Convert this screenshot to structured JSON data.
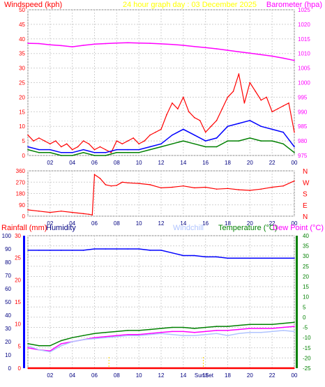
{
  "header": {
    "left_title": "Windspeed (kph)",
    "center_title": "24 hour graph day : 03 December 2025",
    "right_title": "Barometer (hpa)"
  },
  "colors": {
    "windspeed": "#ff0000",
    "gust": "#ff0000",
    "barometer": "#ff00ff",
    "wind_avg": "#0000ff",
    "wind_base": "#008000",
    "direction": "#ff0000",
    "humidity": "#0000ff",
    "temperature": "#008000",
    "dewpoint": "#ff00ff",
    "windchill": "#b0c4ff",
    "rain": "#ff0000",
    "title_left": "#ff0000",
    "title_center": "#ffff00",
    "title_right": "#ff00ff",
    "axis_left": "#ff0000",
    "axis_right": "#ff00ff",
    "rain_axis": "#0000ff",
    "temp_axis": "#008000"
  },
  "chart_data": [
    {
      "type": "line",
      "x_ticks": [
        "02",
        "04",
        "06",
        "08",
        "10",
        "12",
        "14",
        "16",
        "18",
        "20",
        "22",
        "00"
      ],
      "y_left": {
        "ticks": [
          0,
          5,
          10,
          15,
          20,
          25,
          30,
          35,
          40,
          45,
          50
        ],
        "range": [
          0,
          50
        ]
      },
      "y_right": {
        "ticks": [
          975,
          980,
          985,
          990,
          995,
          1000,
          1005,
          1010,
          1015,
          1020,
          1025
        ],
        "range": [
          975,
          1025
        ]
      },
      "grid": true,
      "series": [
        {
          "name": "Windspeed (kph)",
          "kind": "gust",
          "x": [
            0,
            0.5,
            1,
            1.5,
            2,
            2.5,
            3,
            3.5,
            4,
            4.5,
            5,
            5.5,
            6,
            6.5,
            7,
            7.5,
            8,
            8.5,
            9,
            9.5,
            10,
            10.5,
            11,
            11.5,
            12,
            12.5,
            13,
            13.5,
            14,
            14.5,
            15,
            15.5,
            16,
            16.5,
            17,
            17.5,
            18,
            18.5,
            19,
            19.5,
            20,
            20.5,
            21,
            21.5,
            22,
            22.5,
            23,
            23.5,
            24
          ],
          "y": [
            7,
            5,
            6,
            5,
            4,
            5,
            3,
            4,
            2,
            3,
            5,
            4,
            2,
            3,
            2,
            1,
            5,
            4,
            5,
            6,
            4,
            5,
            7,
            8,
            9,
            14,
            18,
            16,
            20,
            15,
            13,
            12,
            8,
            10,
            12,
            16,
            20,
            22,
            28,
            18,
            25,
            22,
            19,
            20,
            15,
            16,
            17,
            18,
            8
          ]
        },
        {
          "name": "Barometer (hpa)",
          "kind": "barometer",
          "x": [
            0,
            1,
            2,
            3,
            4,
            5,
            6,
            7,
            8,
            9,
            10,
            11,
            12,
            13,
            14,
            15,
            16,
            17,
            18,
            19,
            20,
            21,
            22,
            23,
            24
          ],
          "y": [
            1013.5,
            1013.4,
            1013.0,
            1012.7,
            1012.3,
            1012.8,
            1013.2,
            1013.4,
            1013.6,
            1013.7,
            1013.6,
            1013.5,
            1013.3,
            1013.1,
            1012.8,
            1012.4,
            1012.0,
            1011.6,
            1011.1,
            1010.6,
            1010.1,
            1009.6,
            1009.1,
            1008.4,
            1007.6
          ]
        },
        {
          "name": "",
          "kind": "average",
          "x": [
            0,
            1,
            2,
            3,
            4,
            5,
            6,
            7,
            8,
            9,
            10,
            11,
            12,
            13,
            14,
            15,
            16,
            17,
            18,
            19,
            20,
            21,
            22,
            23,
            24
          ],
          "y": [
            3,
            2,
            2,
            1,
            1,
            2,
            1,
            1,
            2,
            2,
            2,
            3,
            4,
            7,
            9,
            7,
            5,
            6,
            10,
            11,
            12,
            10,
            9,
            8,
            3
          ]
        },
        {
          "name": "",
          "kind": "base",
          "x": [
            0,
            1,
            2,
            3,
            4,
            5,
            6,
            7,
            8,
            9,
            10,
            11,
            12,
            13,
            14,
            15,
            16,
            17,
            18,
            19,
            20,
            21,
            22,
            23,
            24
          ],
          "y": [
            2,
            1,
            1,
            0,
            0,
            1,
            0,
            0,
            1,
            1,
            1,
            2,
            3,
            4,
            5,
            4,
            3,
            3,
            5,
            5,
            6,
            5,
            5,
            4,
            1
          ]
        }
      ]
    },
    {
      "type": "line",
      "x_ticks": [
        "02",
        "04",
        "06",
        "08",
        "10",
        "12",
        "14",
        "16",
        "18",
        "20",
        "22",
        "00"
      ],
      "y_left": {
        "ticks": [
          0,
          90,
          180,
          270,
          360
        ],
        "range": [
          0,
          360
        ]
      },
      "y_right_labels": [
        "N",
        "W",
        "S",
        "E",
        "N"
      ],
      "grid": true,
      "series": [
        {
          "name": "",
          "kind": "direction",
          "x": [
            0,
            1,
            2,
            3,
            4,
            5,
            5.5,
            5.8,
            6,
            6.5,
            7,
            7.5,
            8,
            8.5,
            9,
            10,
            11,
            12,
            13,
            14,
            15,
            16,
            17,
            18,
            19,
            20,
            21,
            22,
            23,
            24
          ],
          "y": [
            50,
            40,
            30,
            40,
            30,
            20,
            15,
            10,
            330,
            300,
            250,
            240,
            245,
            270,
            265,
            260,
            250,
            225,
            230,
            240,
            225,
            230,
            215,
            220,
            210,
            205,
            215,
            230,
            240,
            280
          ]
        }
      ]
    },
    {
      "type": "line",
      "x_ticks": [
        "02",
        "04",
        "06",
        "08",
        "10",
        "12",
        "14",
        "16",
        "18",
        "20",
        "22",
        "00"
      ],
      "extra_x_labels": [
        "Sun",
        "Set"
      ],
      "labels": {
        "rainfall": "Rainfall (mm)",
        "humidity": "Humidity",
        "windchill": "Windchill",
        "temperature": "Temperature (°C)",
        "dewpoint": "Dew Point (°C)"
      },
      "y_rain": {
        "ticks": [
          0,
          5,
          10,
          15,
          20,
          25,
          30
        ],
        "range": [
          0,
          30
        ]
      },
      "y_humidity": {
        "ticks": [
          0,
          10,
          20,
          30,
          40,
          50,
          60,
          70,
          80,
          90,
          100
        ],
        "range": [
          0,
          100
        ]
      },
      "y_temp": {
        "ticks": [
          -25,
          -20,
          -15,
          -10,
          -5,
          0,
          5,
          10,
          15,
          20,
          25,
          30,
          35,
          40
        ],
        "range": [
          -25,
          40
        ]
      },
      "grid": true,
      "series": [
        {
          "name": "Humidity",
          "kind": "humidity",
          "x": [
            0,
            1,
            2,
            3,
            4,
            5,
            6,
            7,
            8,
            9,
            10,
            11,
            12,
            13,
            14,
            15,
            16,
            17,
            18,
            19,
            20,
            21,
            22,
            23,
            24
          ],
          "y": [
            89,
            89,
            89,
            89,
            89,
            89,
            90,
            90,
            90,
            90,
            90,
            89,
            89,
            87,
            85,
            85,
            84,
            84,
            83,
            83,
            83,
            83,
            83,
            83,
            83
          ]
        },
        {
          "name": "Temperature (°C)",
          "kind": "temperature",
          "x": [
            0,
            1,
            2,
            3,
            4,
            5,
            6,
            7,
            8,
            9,
            10,
            11,
            12,
            13,
            14,
            15,
            16,
            17,
            18,
            19,
            20,
            21,
            22,
            23,
            24
          ],
          "y": [
            -13,
            -14,
            -14,
            -11.5,
            -10,
            -9,
            -8,
            -7.5,
            -7,
            -6.5,
            -6.5,
            -6,
            -5.5,
            -5,
            -5,
            -5.5,
            -5,
            -4.5,
            -4.5,
            -4,
            -3.5,
            -3.5,
            -3.5,
            -3,
            -2.5
          ]
        },
        {
          "name": "Dew Point (°C)",
          "kind": "dewpoint",
          "x": [
            0,
            1,
            2,
            3,
            4,
            5,
            6,
            7,
            8,
            9,
            10,
            11,
            12,
            13,
            14,
            15,
            16,
            17,
            18,
            19,
            20,
            21,
            22,
            23,
            24
          ],
          "y": [
            -15,
            -16,
            -16.5,
            -13,
            -12,
            -11,
            -10,
            -9.5,
            -9,
            -8.5,
            -8.5,
            -8,
            -7.5,
            -7,
            -7,
            -7.5,
            -7,
            -6.5,
            -6.5,
            -6,
            -5.5,
            -5.5,
            -5.5,
            -5,
            -4.5
          ]
        },
        {
          "name": "Windchill",
          "kind": "windchill",
          "x": [
            0,
            1,
            2,
            3,
            4,
            5,
            6,
            7,
            8,
            9,
            10,
            11,
            12,
            13,
            14,
            15,
            16,
            17,
            18,
            19,
            20,
            21,
            22,
            23,
            24
          ],
          "y": [
            -14,
            -16,
            -17,
            -14,
            -12,
            -11,
            -10.5,
            -10,
            -9.5,
            -9,
            -9,
            -8.5,
            -8,
            -8.5,
            -9,
            -9,
            -8.5,
            -8,
            -9,
            -8,
            -7.5,
            -7.5,
            -7,
            -6.5,
            -7
          ]
        },
        {
          "name": "Rainfall (mm)",
          "kind": "rain",
          "x": [
            0,
            24
          ],
          "y": [
            0,
            0
          ]
        }
      ]
    }
  ]
}
